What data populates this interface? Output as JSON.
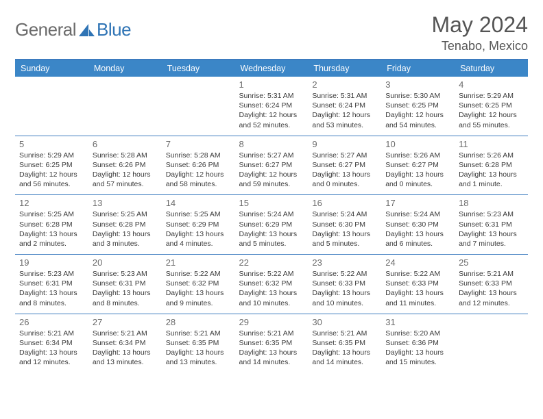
{
  "brand": {
    "part1": "General",
    "part2": "Blue"
  },
  "title": "May 2024",
  "location": "Tenabo, Mexico",
  "colors": {
    "header_bg": "#3b86c7",
    "header_text": "#ffffff",
    "rule": "#3b7bbf",
    "brand_gray": "#6b6b6b",
    "brand_blue": "#2f74b5",
    "text": "#3a3a3a",
    "daynum": "#6b6b6b",
    "background": "#ffffff"
  },
  "typography": {
    "title_fontsize": 32,
    "location_fontsize": 18,
    "header_fontsize": 12.5,
    "cell_fontsize": 10.5,
    "daynum_fontsize": 13
  },
  "headers": [
    "Sunday",
    "Monday",
    "Tuesday",
    "Wednesday",
    "Thursday",
    "Friday",
    "Saturday"
  ],
  "weeks": [
    [
      null,
      null,
      null,
      {
        "n": "1",
        "sr": "Sunrise: 5:31 AM",
        "ss": "Sunset: 6:24 PM",
        "d1": "Daylight: 12 hours",
        "d2": "and 52 minutes."
      },
      {
        "n": "2",
        "sr": "Sunrise: 5:31 AM",
        "ss": "Sunset: 6:24 PM",
        "d1": "Daylight: 12 hours",
        "d2": "and 53 minutes."
      },
      {
        "n": "3",
        "sr": "Sunrise: 5:30 AM",
        "ss": "Sunset: 6:25 PM",
        "d1": "Daylight: 12 hours",
        "d2": "and 54 minutes."
      },
      {
        "n": "4",
        "sr": "Sunrise: 5:29 AM",
        "ss": "Sunset: 6:25 PM",
        "d1": "Daylight: 12 hours",
        "d2": "and 55 minutes."
      }
    ],
    [
      {
        "n": "5",
        "sr": "Sunrise: 5:29 AM",
        "ss": "Sunset: 6:25 PM",
        "d1": "Daylight: 12 hours",
        "d2": "and 56 minutes."
      },
      {
        "n": "6",
        "sr": "Sunrise: 5:28 AM",
        "ss": "Sunset: 6:26 PM",
        "d1": "Daylight: 12 hours",
        "d2": "and 57 minutes."
      },
      {
        "n": "7",
        "sr": "Sunrise: 5:28 AM",
        "ss": "Sunset: 6:26 PM",
        "d1": "Daylight: 12 hours",
        "d2": "and 58 minutes."
      },
      {
        "n": "8",
        "sr": "Sunrise: 5:27 AM",
        "ss": "Sunset: 6:27 PM",
        "d1": "Daylight: 12 hours",
        "d2": "and 59 minutes."
      },
      {
        "n": "9",
        "sr": "Sunrise: 5:27 AM",
        "ss": "Sunset: 6:27 PM",
        "d1": "Daylight: 13 hours",
        "d2": "and 0 minutes."
      },
      {
        "n": "10",
        "sr": "Sunrise: 5:26 AM",
        "ss": "Sunset: 6:27 PM",
        "d1": "Daylight: 13 hours",
        "d2": "and 0 minutes."
      },
      {
        "n": "11",
        "sr": "Sunrise: 5:26 AM",
        "ss": "Sunset: 6:28 PM",
        "d1": "Daylight: 13 hours",
        "d2": "and 1 minute."
      }
    ],
    [
      {
        "n": "12",
        "sr": "Sunrise: 5:25 AM",
        "ss": "Sunset: 6:28 PM",
        "d1": "Daylight: 13 hours",
        "d2": "and 2 minutes."
      },
      {
        "n": "13",
        "sr": "Sunrise: 5:25 AM",
        "ss": "Sunset: 6:28 PM",
        "d1": "Daylight: 13 hours",
        "d2": "and 3 minutes."
      },
      {
        "n": "14",
        "sr": "Sunrise: 5:25 AM",
        "ss": "Sunset: 6:29 PM",
        "d1": "Daylight: 13 hours",
        "d2": "and 4 minutes."
      },
      {
        "n": "15",
        "sr": "Sunrise: 5:24 AM",
        "ss": "Sunset: 6:29 PM",
        "d1": "Daylight: 13 hours",
        "d2": "and 5 minutes."
      },
      {
        "n": "16",
        "sr": "Sunrise: 5:24 AM",
        "ss": "Sunset: 6:30 PM",
        "d1": "Daylight: 13 hours",
        "d2": "and 5 minutes."
      },
      {
        "n": "17",
        "sr": "Sunrise: 5:24 AM",
        "ss": "Sunset: 6:30 PM",
        "d1": "Daylight: 13 hours",
        "d2": "and 6 minutes."
      },
      {
        "n": "18",
        "sr": "Sunrise: 5:23 AM",
        "ss": "Sunset: 6:31 PM",
        "d1": "Daylight: 13 hours",
        "d2": "and 7 minutes."
      }
    ],
    [
      {
        "n": "19",
        "sr": "Sunrise: 5:23 AM",
        "ss": "Sunset: 6:31 PM",
        "d1": "Daylight: 13 hours",
        "d2": "and 8 minutes."
      },
      {
        "n": "20",
        "sr": "Sunrise: 5:23 AM",
        "ss": "Sunset: 6:31 PM",
        "d1": "Daylight: 13 hours",
        "d2": "and 8 minutes."
      },
      {
        "n": "21",
        "sr": "Sunrise: 5:22 AM",
        "ss": "Sunset: 6:32 PM",
        "d1": "Daylight: 13 hours",
        "d2": "and 9 minutes."
      },
      {
        "n": "22",
        "sr": "Sunrise: 5:22 AM",
        "ss": "Sunset: 6:32 PM",
        "d1": "Daylight: 13 hours",
        "d2": "and 10 minutes."
      },
      {
        "n": "23",
        "sr": "Sunrise: 5:22 AM",
        "ss": "Sunset: 6:33 PM",
        "d1": "Daylight: 13 hours",
        "d2": "and 10 minutes."
      },
      {
        "n": "24",
        "sr": "Sunrise: 5:22 AM",
        "ss": "Sunset: 6:33 PM",
        "d1": "Daylight: 13 hours",
        "d2": "and 11 minutes."
      },
      {
        "n": "25",
        "sr": "Sunrise: 5:21 AM",
        "ss": "Sunset: 6:33 PM",
        "d1": "Daylight: 13 hours",
        "d2": "and 12 minutes."
      }
    ],
    [
      {
        "n": "26",
        "sr": "Sunrise: 5:21 AM",
        "ss": "Sunset: 6:34 PM",
        "d1": "Daylight: 13 hours",
        "d2": "and 12 minutes."
      },
      {
        "n": "27",
        "sr": "Sunrise: 5:21 AM",
        "ss": "Sunset: 6:34 PM",
        "d1": "Daylight: 13 hours",
        "d2": "and 13 minutes."
      },
      {
        "n": "28",
        "sr": "Sunrise: 5:21 AM",
        "ss": "Sunset: 6:35 PM",
        "d1": "Daylight: 13 hours",
        "d2": "and 13 minutes."
      },
      {
        "n": "29",
        "sr": "Sunrise: 5:21 AM",
        "ss": "Sunset: 6:35 PM",
        "d1": "Daylight: 13 hours",
        "d2": "and 14 minutes."
      },
      {
        "n": "30",
        "sr": "Sunrise: 5:21 AM",
        "ss": "Sunset: 6:35 PM",
        "d1": "Daylight: 13 hours",
        "d2": "and 14 minutes."
      },
      {
        "n": "31",
        "sr": "Sunrise: 5:20 AM",
        "ss": "Sunset: 6:36 PM",
        "d1": "Daylight: 13 hours",
        "d2": "and 15 minutes."
      },
      null
    ]
  ]
}
